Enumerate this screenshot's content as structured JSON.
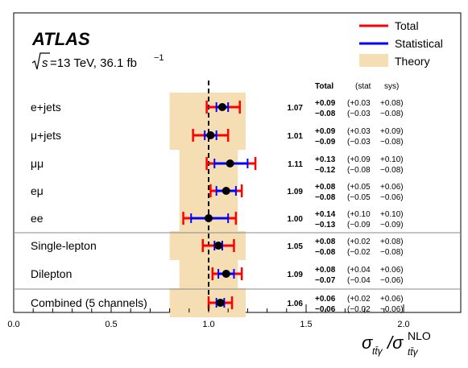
{
  "chart_data": {
    "type": "scatter",
    "experiment": "ATLAS",
    "energy_line": {
      "sqrt_s": "s",
      "text": " =13 TeV, 36.1 fb",
      "superscript": "−1"
    },
    "legend": {
      "placement": "top-right",
      "total": "Total",
      "statistical": "Statistical",
      "theory": "Theory"
    },
    "colors": {
      "total": "#ff0000",
      "statistical": "#0000ff",
      "theory": "#f5deb3",
      "point": "#000000"
    },
    "reference_line_x": 1.0,
    "xlim": [
      0.0,
      2.0
    ],
    "x_ticks": [
      "0.0",
      "0.5",
      "1.0",
      "1.5",
      "2.0"
    ],
    "x_tick_values": [
      0.0,
      0.5,
      1.0,
      1.5,
      2.0
    ],
    "xlabel": {
      "main": "σ",
      "sub": "tt̄γ",
      "slash": "/σ",
      "sup": "NLO",
      "sub2": "tt̄γ"
    },
    "table_header": {
      "total": "Total",
      "stat": "(stat",
      "sys": "sys)"
    },
    "channels": [
      {
        "label": "e+jets",
        "value": 1.07,
        "value_text": "1.07",
        "total_up": 0.09,
        "total_down": 0.08,
        "stat_up": 0.03,
        "stat_down": 0.03,
        "theory_lo": 0.8,
        "theory_hi": 1.19,
        "row1": [
          "+0.09",
          "(+0.03",
          "+0.08)"
        ],
        "row2": [
          "−0.08",
          "(−0.03",
          "−0.08)"
        ]
      },
      {
        "label": "μ+jets",
        "value": 1.01,
        "value_text": "1.01",
        "total_up": 0.09,
        "total_down": 0.09,
        "stat_up": 0.03,
        "stat_down": 0.03,
        "theory_lo": 0.8,
        "theory_hi": 1.19,
        "row1": [
          "+0.09",
          "(+0.03",
          "+0.09)"
        ],
        "row2": [
          "−0.09",
          "(−0.03",
          "−0.08)"
        ]
      },
      {
        "label": "μμ",
        "value": 1.11,
        "value_text": "1.11",
        "total_up": 0.13,
        "total_down": 0.12,
        "stat_up": 0.09,
        "stat_down": 0.08,
        "theory_lo": 0.85,
        "theory_hi": 1.15,
        "row1": [
          "+0.13",
          "(+0.09",
          "+0.10)"
        ],
        "row2": [
          "−0.12",
          "(−0.08",
          "−0.08)"
        ]
      },
      {
        "label": "eμ",
        "value": 1.09,
        "value_text": "1.09",
        "total_up": 0.08,
        "total_down": 0.08,
        "stat_up": 0.05,
        "stat_down": 0.05,
        "theory_lo": 0.85,
        "theory_hi": 1.15,
        "row1": [
          "+0.08",
          "(+0.05",
          "+0.06)"
        ],
        "row2": [
          "−0.08",
          "(−0.05",
          "−0.06)"
        ]
      },
      {
        "label": "ee",
        "value": 1.0,
        "value_text": "1.00",
        "total_up": 0.14,
        "total_down": 0.13,
        "stat_up": 0.1,
        "stat_down": 0.09,
        "theory_lo": 0.85,
        "theory_hi": 1.15,
        "row1": [
          "+0.14",
          "(+0.10",
          "+0.10)"
        ],
        "row2": [
          "−0.13",
          "(−0.09",
          "−0.09)"
        ]
      },
      {
        "label": "Single-lepton",
        "value": 1.05,
        "value_text": "1.05",
        "total_up": 0.08,
        "total_down": 0.08,
        "stat_up": 0.02,
        "stat_down": 0.02,
        "theory_lo": 0.8,
        "theory_hi": 1.19,
        "row1": [
          "+0.08",
          "(+0.02",
          "+0.08)"
        ],
        "row2": [
          "−0.08",
          "(−0.02",
          "−0.08)"
        ]
      },
      {
        "label": "Dilepton",
        "value": 1.09,
        "value_text": "1.09",
        "total_up": 0.08,
        "total_down": 0.07,
        "stat_up": 0.04,
        "stat_down": 0.04,
        "theory_lo": 0.85,
        "theory_hi": 1.15,
        "row1": [
          "+0.08",
          "(+0.04",
          "+0.06)"
        ],
        "row2": [
          "−0.07",
          "(−0.04",
          "−0.06)"
        ]
      },
      {
        "label": "Combined (5 channels)",
        "value": 1.06,
        "value_text": "1.06",
        "total_up": 0.06,
        "total_down": 0.06,
        "stat_up": 0.02,
        "stat_down": 0.02,
        "theory_lo": 0.8,
        "theory_hi": 1.19,
        "row1": [
          "+0.06",
          "(+0.02",
          "+0.06)"
        ],
        "row2": [
          "−0.06",
          "(−0.02",
          "−0.06)"
        ]
      }
    ],
    "separators_after": [
      4,
      6
    ],
    "grid": false
  }
}
